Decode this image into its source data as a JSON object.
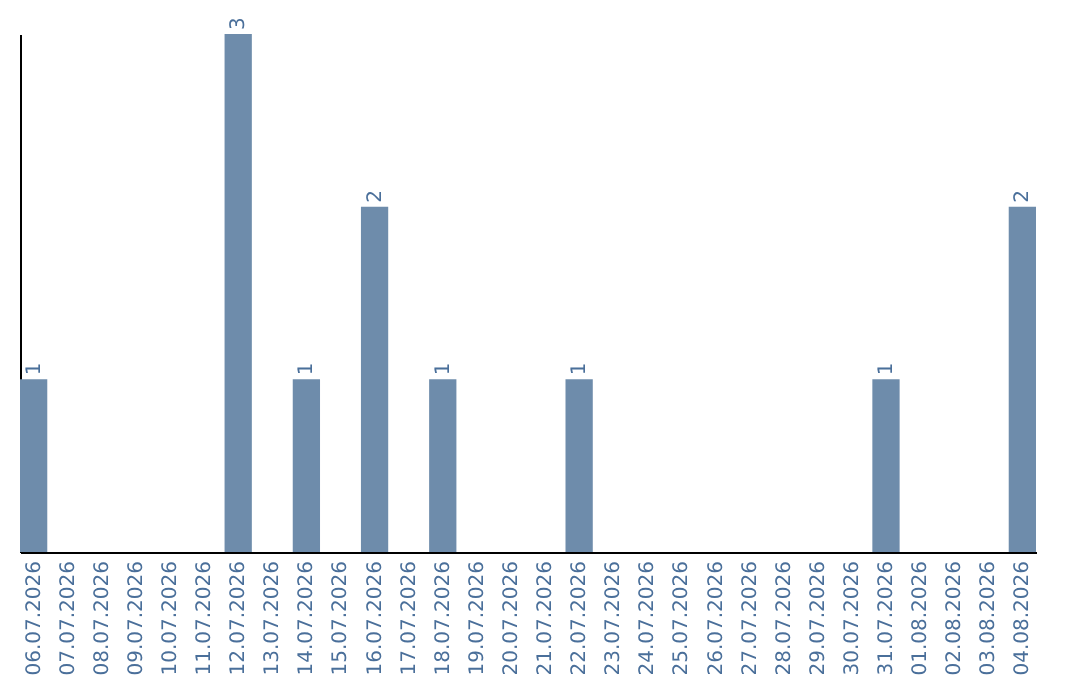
{
  "chart_data": {
    "type": "bar",
    "categories": [
      "06.07.2026",
      "07.07.2026",
      "08.07.2026",
      "09.07.2026",
      "10.07.2026",
      "11.07.2026",
      "12.07.2026",
      "13.07.2026",
      "14.07.2026",
      "15.07.2026",
      "16.07.2026",
      "17.07.2026",
      "18.07.2026",
      "19.07.2026",
      "20.07.2026",
      "21.07.2026",
      "22.07.2026",
      "23.07.2026",
      "24.07.2026",
      "25.07.2026",
      "26.07.2026",
      "27.07.2026",
      "28.07.2026",
      "29.07.2026",
      "30.07.2026",
      "31.07.2026",
      "01.08.2026",
      "02.08.2026",
      "03.08.2026",
      "04.08.2026"
    ],
    "values": [
      1,
      0,
      0,
      0,
      0,
      0,
      3,
      0,
      1,
      0,
      2,
      0,
      1,
      0,
      0,
      0,
      1,
      0,
      0,
      0,
      0,
      0,
      0,
      0,
      0,
      1,
      0,
      0,
      0,
      2
    ],
    "value_labels": [
      "1",
      null,
      null,
      null,
      null,
      null,
      "3",
      null,
      "1",
      null,
      "2",
      null,
      "1",
      null,
      null,
      null,
      "1",
      null,
      null,
      null,
      null,
      null,
      null,
      null,
      null,
      "1",
      null,
      null,
      null,
      "2"
    ],
    "color": "#6e8cab",
    "ylim": [
      0,
      3
    ],
    "tick_labels": "x",
    "grid": false
  }
}
